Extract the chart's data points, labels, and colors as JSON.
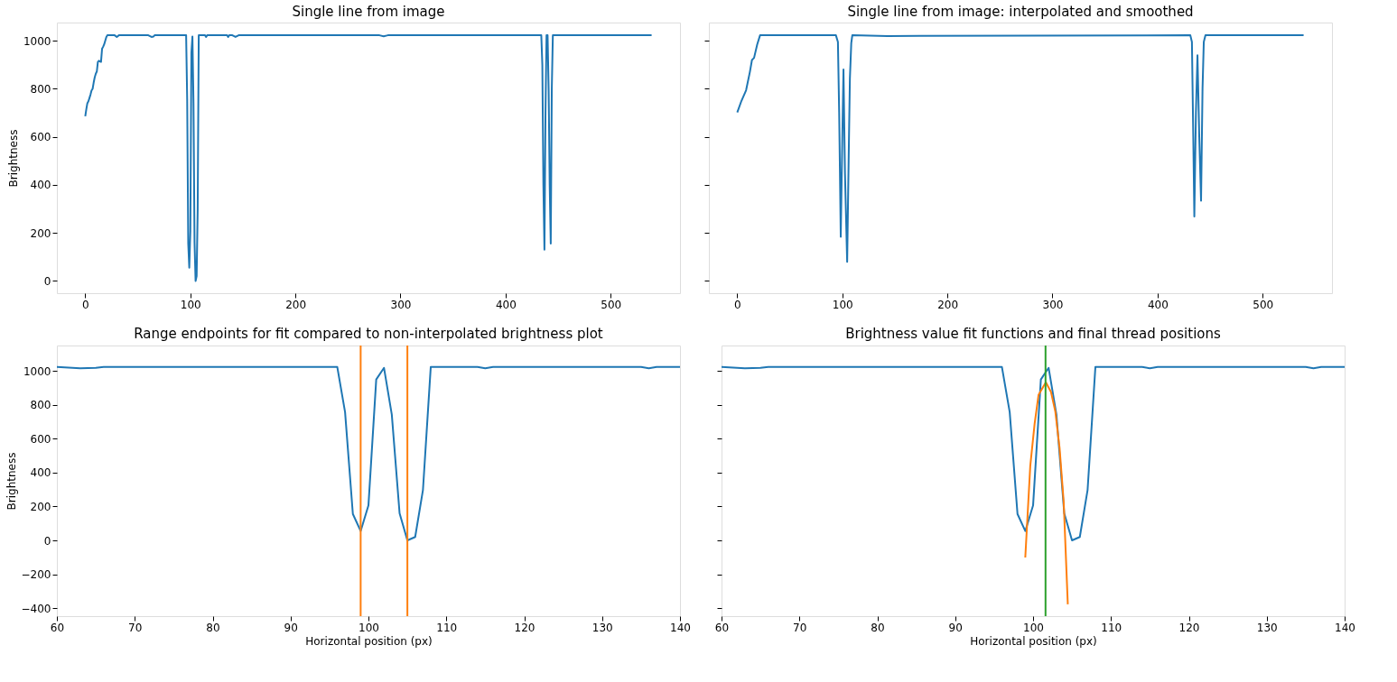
{
  "chart_data": [
    {
      "type": "line",
      "title": "Single line from image",
      "ylabel": "Brightness",
      "xlim": [
        -27,
        566
      ],
      "ylim": [
        -51,
        1076
      ],
      "xticks": [
        0,
        100,
        200,
        300,
        400,
        500
      ],
      "yticks": [
        0,
        200,
        400,
        600,
        800,
        1000
      ],
      "grid": false,
      "series": [
        {
          "color": "#1f77b4",
          "x": [
            0,
            1,
            2,
            3,
            4,
            5,
            6,
            7,
            8,
            9,
            10,
            11,
            12,
            13,
            14,
            15,
            16,
            17,
            18,
            19,
            20,
            21,
            28,
            30,
            32,
            60,
            63,
            65,
            66,
            96,
            97,
            98,
            99,
            100,
            101,
            102,
            103,
            104,
            105,
            106,
            107,
            108,
            114,
            115,
            116,
            135,
            136,
            137,
            140,
            143,
            146,
            280,
            284,
            288,
            434,
            435,
            436,
            437,
            438,
            439,
            440,
            441,
            442,
            443,
            444,
            445,
            539
          ],
          "values": [
            686,
            715,
            740,
            748,
            762,
            776,
            793,
            800,
            826,
            848,
            863,
            872,
            912,
            917,
            914,
            912,
            967,
            975,
            985,
            1000,
            1015,
            1023,
            1023,
            1016,
            1023,
            1023,
            1016,
            1018,
            1023,
            1023,
            757,
            156,
            55,
            206,
            950,
            1018,
            742,
            160,
            0,
            20,
            298,
            1023,
            1023,
            1016,
            1023,
            1023,
            1016,
            1023,
            1023,
            1016,
            1023,
            1023,
            1019,
            1023,
            1023,
            900,
            400,
            130,
            700,
            1023,
            1023,
            800,
            400,
            156,
            800,
            1023,
            1023
          ]
        }
      ]
    },
    {
      "type": "line",
      "title": "Single line from image: interpolated and smoothed",
      "xlim": [
        -27,
        566
      ],
      "ylim": [
        -51,
        1076
      ],
      "xticks": [
        0,
        100,
        200,
        300,
        400,
        500
      ],
      "yticks": [
        0,
        200,
        400,
        600,
        800,
        1000
      ],
      "grid": false,
      "tick_labels": "x",
      "series": [
        {
          "color": "#1f77b4",
          "x": [
            0,
            4,
            8.4,
            12,
            14,
            16,
            19,
            21.7,
            93.9,
            95.8,
            97,
            98.5,
            100,
            101.1,
            102.5,
            104.6,
            106,
            107.2,
            108.5,
            109.5,
            143,
            431.2,
            432.7,
            434,
            435,
            436.5,
            438,
            439.7,
            441.4,
            442.8,
            444,
            445.6,
            539
          ],
          "values": [
            702,
            750,
            794,
            870,
            920,
            929,
            985,
            1023,
            1023,
            995,
            700,
            184,
            600,
            881,
            450,
            80,
            500,
            843,
            990,
            1023,
            1020,
            1023,
            995,
            600,
            268,
            700,
            940,
            600,
            334,
            800,
            995,
            1023,
            1023
          ]
        }
      ]
    },
    {
      "type": "line",
      "title": "Range endpoints for fit compared to non-interpolated brightness plot",
      "xlabel": "Horizontal position (px)",
      "ylabel": "Brightness",
      "xlim": [
        60,
        140
      ],
      "ylim": [
        -447,
        1150
      ],
      "xticks": [
        60,
        70,
        80,
        90,
        100,
        110,
        120,
        130,
        140
      ],
      "yticks": [
        -400,
        -200,
        0,
        200,
        400,
        600,
        800,
        1000
      ],
      "grid": false,
      "series": [
        {
          "color": "#1f77b4",
          "x": [
            60,
            63,
            65,
            66,
            96,
            97,
            98,
            99,
            100,
            101,
            102,
            103,
            104,
            105,
            106,
            107,
            108,
            114,
            115,
            116,
            135,
            136,
            137,
            140
          ],
          "values": [
            1023,
            1016,
            1018,
            1023,
            1023,
            757,
            156,
            55,
            206,
            950,
            1018,
            742,
            160,
            0,
            20,
            298,
            1023,
            1023,
            1016,
            1023,
            1023,
            1016,
            1023,
            1023
          ]
        }
      ],
      "ref_lines": [
        {
          "axis": "x",
          "value": 99,
          "color": "#ff7f0e"
        },
        {
          "axis": "x",
          "value": 105,
          "color": "#ff7f0e"
        }
      ]
    },
    {
      "type": "line",
      "title": "Brightness value fit functions and final thread positions",
      "xlabel": "Horizontal position (px)",
      "xlim": [
        60,
        140
      ],
      "ylim": [
        -447,
        1150
      ],
      "xticks": [
        60,
        70,
        80,
        90,
        100,
        110,
        120,
        130,
        140
      ],
      "yticks": [
        -400,
        -200,
        0,
        200,
        400,
        600,
        800,
        1000
      ],
      "grid": false,
      "tick_labels": "x",
      "series": [
        {
          "color": "#1f77b4",
          "x": [
            60,
            63,
            65,
            66,
            96,
            97,
            98,
            99,
            100,
            101,
            102,
            103,
            104,
            105,
            106,
            107,
            108,
            114,
            115,
            116,
            135,
            136,
            137,
            140
          ],
          "values": [
            1023,
            1016,
            1018,
            1023,
            1023,
            757,
            156,
            55,
            206,
            950,
            1018,
            742,
            160,
            0,
            20,
            298,
            1023,
            1023,
            1016,
            1023,
            1023,
            1016,
            1023,
            1023
          ]
        },
        {
          "color": "#ff7f0e",
          "x": [
            99.0,
            99.64,
            100.2,
            100.7,
            101.64,
            102.3,
            102.86,
            103.4,
            103.93,
            104.46
          ],
          "values": [
            -101,
            440,
            689,
            858,
            933,
            876,
            760,
            547,
            227,
            -377
          ]
        }
      ],
      "ref_lines": [
        {
          "axis": "x",
          "value": 101.6,
          "color": "#2ca02c"
        }
      ]
    }
  ]
}
